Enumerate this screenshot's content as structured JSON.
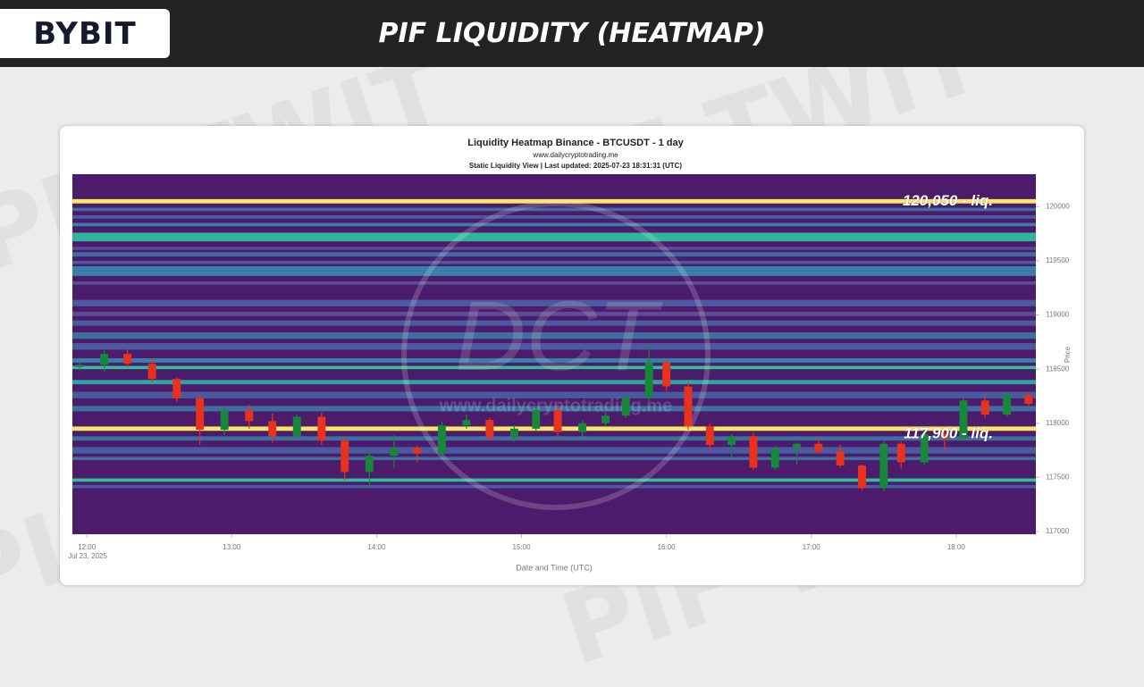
{
  "header": {
    "logo": "BYBIT",
    "title": "PIF LIQUIDITY (HEATMAP)"
  },
  "watermark": "PIF TWIT",
  "chart_data": {
    "type": "candlestick",
    "title": "Liquidity Heatmap Binance - BTCUSDT - 1 day",
    "subtitle": "www.dailycryptotrading.me",
    "subtitle_2": "Static Liquidity View | Last updated: 2025-07-23 18:31:31 (UTC)",
    "watermark": "DCT",
    "x_label": "Date and Time (UTC)",
    "y_label": "Price",
    "x_date_label": "Jul 23, 2025",
    "xlim": [
      11.9,
      18.55
    ],
    "xticks": [
      {
        "value": 12,
        "label": "12:00"
      },
      {
        "value": 13,
        "label": "13:00"
      },
      {
        "value": 14,
        "label": "14:00"
      },
      {
        "value": 15,
        "label": "15:00"
      },
      {
        "value": 16,
        "label": "16:00"
      },
      {
        "value": 17,
        "label": "17:00"
      },
      {
        "value": 18,
        "label": "18:00"
      }
    ],
    "ylim": [
      116975,
      120300
    ],
    "yticks": [
      117000,
      117500,
      118000,
      118500,
      119000,
      119500,
      120000
    ],
    "up_color": "#17883a",
    "down_color": "#e8321e",
    "heatmap_background": "#4d1b6c",
    "x": [
      11.95,
      12.12,
      12.28,
      12.45,
      12.62,
      12.78,
      12.95,
      13.12,
      13.28,
      13.45,
      13.62,
      13.78,
      13.95,
      14.12,
      14.28,
      14.45,
      14.62,
      14.78,
      14.95,
      15.1,
      15.25,
      15.42,
      15.58,
      15.72,
      15.88,
      16.0,
      16.15,
      16.3,
      16.45,
      16.6,
      16.75,
      16.9,
      17.05,
      17.2,
      17.35,
      17.5,
      17.62,
      17.78,
      17.92,
      18.05,
      18.2,
      18.35,
      18.5
    ],
    "open": [
      118520,
      118540,
      118640,
      118550,
      118410,
      118230,
      117940,
      118120,
      118020,
      117880,
      118060,
      117840,
      117550,
      117700,
      117770,
      117720,
      117980,
      118030,
      117870,
      117950,
      118120,
      117920,
      118000,
      118070,
      118240,
      118560,
      118340,
      117970,
      117800,
      117880,
      117590,
      117770,
      117810,
      117740,
      117610,
      117400,
      117810,
      117640,
      117900,
      117860,
      118210,
      118080,
      118260
    ],
    "high": [
      118560,
      118670,
      118680,
      118600,
      118420,
      118250,
      118150,
      118170,
      118090,
      118080,
      118100,
      117870,
      117740,
      117890,
      117790,
      118010,
      118080,
      118050,
      117980,
      118160,
      118170,
      118030,
      118110,
      118270,
      118700,
      118600,
      118380,
      118000,
      117900,
      117910,
      117790,
      117820,
      117860,
      117800,
      117620,
      117840,
      117830,
      117950,
      117950,
      118240,
      118260,
      118290,
      118280
    ],
    "low": [
      118490,
      118480,
      118520,
      118380,
      118200,
      117800,
      117890,
      117950,
      117820,
      117860,
      117800,
      117470,
      117400,
      117590,
      117640,
      117700,
      117950,
      117840,
      117830,
      117920,
      117880,
      117880,
      117970,
      118050,
      118200,
      118300,
      117940,
      117750,
      117690,
      117570,
      117570,
      117620,
      117720,
      117590,
      117380,
      117370,
      117580,
      117620,
      117740,
      117840,
      118050,
      118060,
      118150
    ],
    "close": [
      118540,
      118640,
      118550,
      118410,
      118230,
      117940,
      118120,
      118020,
      117880,
      118060,
      117840,
      117550,
      117700,
      117770,
      117720,
      117980,
      118030,
      117870,
      117950,
      118120,
      117920,
      118000,
      118070,
      118240,
      118560,
      118340,
      117970,
      117800,
      117880,
      117590,
      117770,
      117810,
      117740,
      117610,
      117400,
      117810,
      117640,
      117900,
      117860,
      118210,
      118080,
      118260,
      118180
    ],
    "bands": [
      {
        "low": 120030,
        "high": 120070,
        "color": "#f5e663"
      },
      {
        "low": 119960,
        "high": 119990,
        "color": "#3e6fa0"
      },
      {
        "low": 119890,
        "high": 119920,
        "color": "#4a5aa0"
      },
      {
        "low": 119820,
        "high": 119850,
        "color": "#3a7fa8"
      },
      {
        "low": 119680,
        "high": 119760,
        "color": "#2fb69a"
      },
      {
        "low": 119600,
        "high": 119630,
        "color": "#4e4f9c"
      },
      {
        "low": 119540,
        "high": 119580,
        "color": "#3d6ca4"
      },
      {
        "low": 119470,
        "high": 119500,
        "color": "#4a5aa0"
      },
      {
        "low": 119360,
        "high": 119450,
        "color": "#3a7fa8"
      },
      {
        "low": 119280,
        "high": 119310,
        "color": "#5a4c96"
      },
      {
        "low": 119080,
        "high": 119140,
        "color": "#4a5aa0"
      },
      {
        "low": 118990,
        "high": 119030,
        "color": "#5a4c96"
      },
      {
        "low": 118900,
        "high": 118950,
        "color": "#4a5aa0"
      },
      {
        "low": 118780,
        "high": 118840,
        "color": "#3e6fa0"
      },
      {
        "low": 118680,
        "high": 118740,
        "color": "#4a5aa0"
      },
      {
        "low": 118560,
        "high": 118600,
        "color": "#3a7fa8"
      },
      {
        "low": 118500,
        "high": 118530,
        "color": "#2fbf9a"
      },
      {
        "low": 118360,
        "high": 118400,
        "color": "#2fa5a0"
      },
      {
        "low": 118230,
        "high": 118290,
        "color": "#4a5aa0"
      },
      {
        "low": 118110,
        "high": 118160,
        "color": "#3e6fa0"
      },
      {
        "low": 117930,
        "high": 117970,
        "color": "#f5e663"
      },
      {
        "low": 117840,
        "high": 117880,
        "color": "#3e6fa0"
      },
      {
        "low": 117720,
        "high": 117780,
        "color": "#4a5aa0"
      },
      {
        "low": 117660,
        "high": 117690,
        "color": "#3e6fa0"
      },
      {
        "low": 117460,
        "high": 117490,
        "color": "#2fbf9a"
      },
      {
        "low": 117400,
        "high": 117430,
        "color": "#4a5aa0"
      }
    ],
    "annotations": [
      {
        "value": 120050,
        "label": "120,050 - liq."
      },
      {
        "value": 117900,
        "label": "117,900 - liq."
      }
    ]
  }
}
